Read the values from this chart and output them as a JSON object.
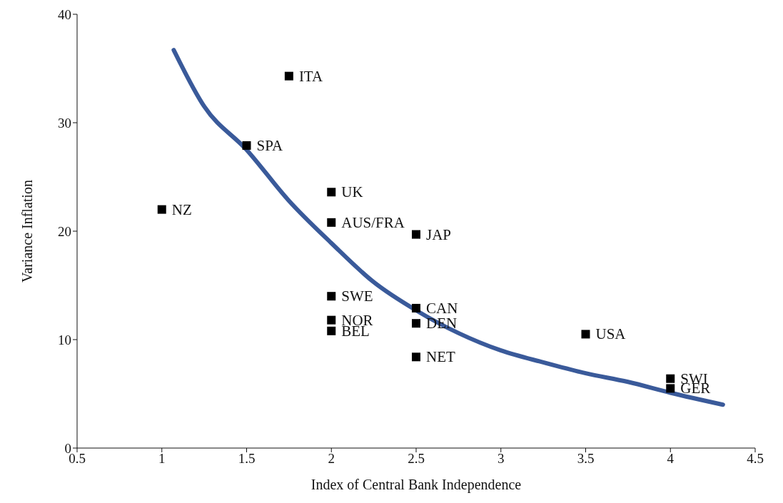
{
  "chart_data": {
    "type": "scatter",
    "xlabel": "Index of Central Bank Independence",
    "ylabel": "Variance Inflation",
    "xlim": [
      0.5,
      4.5
    ],
    "xticks": [
      0.5,
      1,
      1.5,
      2,
      2.5,
      3,
      3.5,
      4,
      4.5
    ],
    "ylim": [
      0,
      40
    ],
    "yticks": [
      0,
      10,
      20,
      30,
      40
    ],
    "grid": false,
    "legend": false,
    "marker": "square",
    "series": [
      {
        "color": "#000000",
        "x": [
          1,
          1.5,
          1.75,
          2,
          2,
          2,
          2,
          2,
          2.5,
          2.5,
          2.5,
          2.5,
          3.5,
          4,
          4
        ],
        "values": [
          22,
          27.9,
          34.3,
          23.6,
          20.8,
          14,
          11.8,
          10.8,
          19.7,
          12.9,
          11.5,
          8.4,
          10.5,
          6.4,
          5.5
        ]
      },
      {
        "type": "line",
        "color": "#3a5a9a",
        "marker": "none",
        "line_style": "solid",
        "x": [
          1.07,
          1.25,
          1.5,
          1.75,
          2,
          2.25,
          2.5,
          2.75,
          3,
          3.25,
          3.5,
          3.75,
          4,
          4.31
        ],
        "values": [
          36.7,
          31.5,
          27.5,
          22.8,
          18.9,
          15.3,
          12.7,
          10.6,
          9,
          7.9,
          6.9,
          6.1,
          5.1,
          4
        ]
      }
    ],
    "annotations": [
      {
        "text": "NZ",
        "x": 1,
        "y": 22
      },
      {
        "text": "SPA",
        "x": 1.5,
        "y": 27.9
      },
      {
        "text": "ITA",
        "x": 1.75,
        "y": 34.3
      },
      {
        "text": "UK",
        "x": 2,
        "y": 23.6
      },
      {
        "text": "AUS/FRA",
        "x": 2,
        "y": 20.8
      },
      {
        "text": "SWE",
        "x": 2,
        "y": 14
      },
      {
        "text": "NOR",
        "x": 2,
        "y": 11.8
      },
      {
        "text": "BEL",
        "x": 2,
        "y": 10.8
      },
      {
        "text": "JAP",
        "x": 2.5,
        "y": 19.7
      },
      {
        "text": "CAN",
        "x": 2.5,
        "y": 12.9
      },
      {
        "text": "DEN",
        "x": 2.5,
        "y": 11.5
      },
      {
        "text": "NET",
        "x": 2.5,
        "y": 8.4
      },
      {
        "text": "USA",
        "x": 3.5,
        "y": 10.5
      },
      {
        "text": "SWI",
        "x": 4,
        "y": 6.4
      },
      {
        "text": "GER",
        "x": 4,
        "y": 5.5
      }
    ]
  }
}
